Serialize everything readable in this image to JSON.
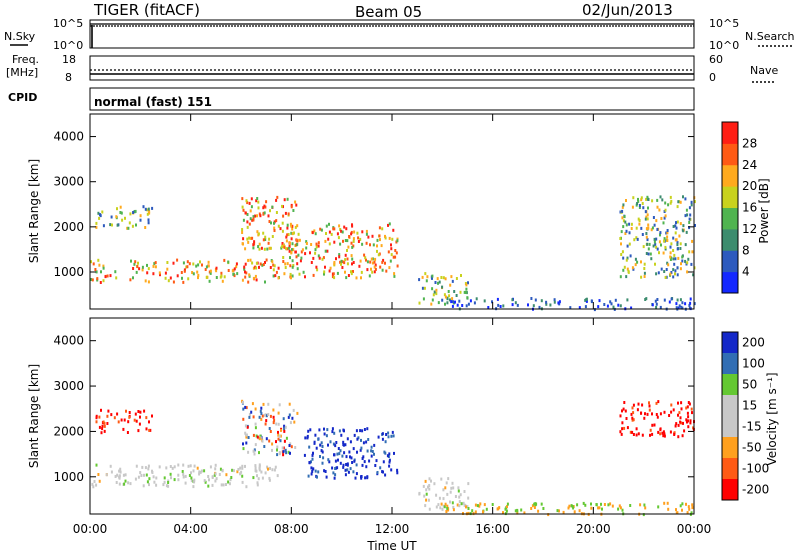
{
  "header": {
    "title": "TIGER (fitACF)",
    "beam": "Beam 05",
    "date": "02/Jun/2013"
  },
  "top_panels": {
    "nsky_label": "N.Sky",
    "nsearch_label": "N.Search",
    "freq_label_1": "Freq.",
    "freq_label_2": "[MHz]",
    "nave_label": "Nave",
    "cpid_label": "CPID",
    "cpid_value": "normal (fast) 151",
    "noise_left_ticks": [
      "10^5",
      "10^0"
    ],
    "noise_right_ticks": [
      "10^5",
      "10^0"
    ],
    "freq_left_ticks": [
      "18",
      "8"
    ],
    "freq_right_ticks": [
      "60",
      "0"
    ]
  },
  "chart_data": [
    {
      "type": "heatmap",
      "panel": "power",
      "ylabel": "Slant Range [km]",
      "xlabel": "",
      "ylim": [
        180,
        4500
      ],
      "xlim": [
        0,
        24
      ],
      "yticks": [
        1000,
        2000,
        3000,
        4000
      ],
      "colorbar": {
        "label": "Power [dB]",
        "ticks": [
          4,
          8,
          12,
          16,
          20,
          24,
          28
        ],
        "range": [
          0,
          30
        ]
      },
      "scatter_regions_hours_km": [
        {
          "t": [
            0.0,
            7.5
          ],
          "r": [
            800,
            1300
          ],
          "level": "high"
        },
        {
          "t": [
            0.2,
            2.5
          ],
          "r": [
            2000,
            2500
          ],
          "level": "medium"
        },
        {
          "t": [
            6.0,
            8.2
          ],
          "r": [
            1500,
            2700
          ],
          "level": "high"
        },
        {
          "t": [
            7.5,
            12.2
          ],
          "r": [
            900,
            2100
          ],
          "level": "high"
        },
        {
          "t": [
            13.0,
            15.0
          ],
          "r": [
            300,
            1000
          ],
          "level": "medium"
        },
        {
          "t": [
            14.0,
            24.0
          ],
          "r": [
            200,
            450
          ],
          "level": "low"
        },
        {
          "t": [
            21.0,
            24.0
          ],
          "r": [
            900,
            2700
          ],
          "level": "medium"
        }
      ]
    },
    {
      "type": "heatmap",
      "panel": "velocity",
      "ylabel": "Slant Range [km]",
      "xlabel": "Time UT",
      "ylim": [
        180,
        4500
      ],
      "xlim": [
        0,
        24
      ],
      "yticks": [
        1000,
        2000,
        3000,
        4000
      ],
      "xticks": [
        "00:00",
        "04:00",
        "08:00",
        "12:00",
        "16:00",
        "20:00",
        "00:00"
      ],
      "colorbar": {
        "label": "Velocity [m s⁻¹]",
        "ticks": [
          "200",
          "100",
          "50",
          "15",
          "-15",
          "-50",
          "-100",
          "-200"
        ]
      },
      "scatter_regions_hours_km": [
        {
          "t": [
            0.0,
            7.5
          ],
          "r": [
            800,
            1300
          ],
          "level": "ground"
        },
        {
          "t": [
            0.2,
            2.5
          ],
          "r": [
            2000,
            2500
          ],
          "level": "negative"
        },
        {
          "t": [
            6.0,
            8.2
          ],
          "r": [
            1500,
            2700
          ],
          "level": "mixed"
        },
        {
          "t": [
            8.5,
            12.2
          ],
          "r": [
            1000,
            2100
          ],
          "level": "positive"
        },
        {
          "t": [
            13.0,
            15.0
          ],
          "r": [
            300,
            1000
          ],
          "level": "ground"
        },
        {
          "t": [
            14.0,
            24.0
          ],
          "r": [
            200,
            450
          ],
          "level": "low"
        },
        {
          "t": [
            21.0,
            24.0
          ],
          "r": [
            1900,
            2700
          ],
          "level": "negative"
        }
      ]
    }
  ],
  "colors": {
    "power_scale": [
      "#1428ff",
      "#2d5abe",
      "#3c8c6e",
      "#50b450",
      "#c8d21e",
      "#ffaa1e",
      "#ff5a14",
      "#ff1e14"
    ],
    "velocity_scale": [
      "#ff0000",
      "#ff5a14",
      "#ffa01e",
      "#c8c8c8",
      "#c8c8c8",
      "#64c832",
      "#326eb4",
      "#1428c8"
    ]
  }
}
